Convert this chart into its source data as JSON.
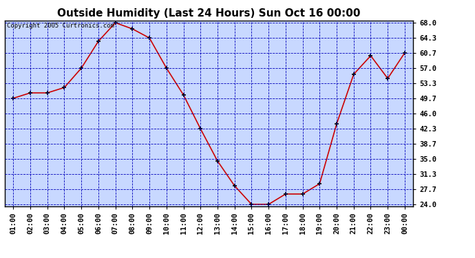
{
  "title": "Outside Humidity (Last 24 Hours) Sun Oct 16 00:00",
  "copyright": "Copyright 2005 Curtronics.com",
  "hours": [
    "01:00",
    "02:00",
    "03:00",
    "04:00",
    "05:00",
    "06:00",
    "07:00",
    "08:00",
    "09:00",
    "10:00",
    "11:00",
    "12:00",
    "13:00",
    "14:00",
    "15:00",
    "16:00",
    "17:00",
    "18:00",
    "19:00",
    "20:00",
    "21:00",
    "22:00",
    "23:00",
    "00:00"
  ],
  "values": [
    49.7,
    51.0,
    51.0,
    52.3,
    57.0,
    63.5,
    68.0,
    66.5,
    64.3,
    57.0,
    50.5,
    42.3,
    34.5,
    28.5,
    24.0,
    24.0,
    26.5,
    26.5,
    29.0,
    43.5,
    55.5,
    60.0,
    54.5,
    60.7
  ],
  "line_color": "#cc0000",
  "marker_color": "#000000",
  "bg_color": "#ffffff",
  "plot_bg_color": "#c8d8ff",
  "grid_color": "#0000bb",
  "border_color": "#000000",
  "title_color": "#000000",
  "ylim_min": 24.0,
  "ylim_max": 68.0,
  "yticks": [
    24.0,
    27.7,
    31.3,
    35.0,
    38.7,
    42.3,
    46.0,
    49.7,
    53.3,
    57.0,
    60.7,
    64.3,
    68.0
  ],
  "title_fontsize": 11,
  "tick_fontsize": 7.5,
  "copyright_fontsize": 6.5
}
